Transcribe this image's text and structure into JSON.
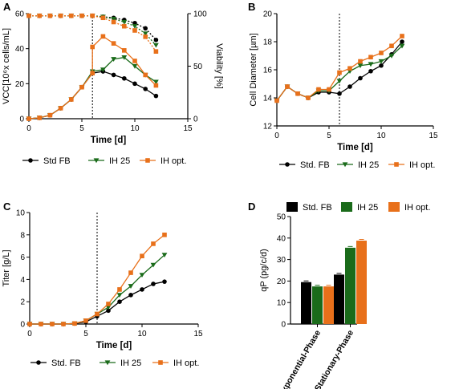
{
  "colors": {
    "std": "#000000",
    "ih25": "#1a6b1a",
    "ihopt": "#e8701a",
    "axis": "#000000"
  },
  "chart_data": [
    {
      "panel_label": "A",
      "type": "line",
      "xlabel": "Time [d]",
      "ylabel": "VCC[10⁶x cells/mL]",
      "y2label": "Viability [%]",
      "xlim": [
        0,
        15
      ],
      "ylim": [
        0,
        60
      ],
      "y2lim": [
        0,
        100
      ],
      "xticks": [
        "0",
        "5",
        "10",
        "15"
      ],
      "yticks": [
        "0",
        "20",
        "40",
        "60"
      ],
      "y2ticks": [
        "0",
        "50",
        "100"
      ],
      "vline_x": 6,
      "legend": [
        "Std FB",
        "IH 25",
        "IH opt."
      ],
      "series": [
        {
          "name": "Std FB",
          "axis": "left",
          "style": "solid",
          "x": [
            0,
            1,
            2,
            3,
            4,
            5,
            6,
            7,
            8,
            9,
            10,
            11,
            12
          ],
          "y": [
            0,
            0.5,
            2,
            6,
            11,
            18,
            26,
            27,
            25,
            23,
            20,
            17,
            13
          ]
        },
        {
          "name": "IH 25",
          "axis": "left",
          "style": "solid",
          "x": [
            0,
            1,
            2,
            3,
            4,
            5,
            6,
            7,
            8,
            9,
            10,
            11,
            12
          ],
          "y": [
            0,
            0.5,
            2,
            6,
            11,
            18,
            27,
            28,
            34,
            35,
            30,
            25,
            21
          ]
        },
        {
          "name": "IH opt.",
          "axis": "left",
          "style": "solid",
          "x": [
            0,
            1,
            2,
            3,
            4,
            5,
            6,
            6,
            7,
            8,
            9,
            10,
            11,
            12
          ],
          "y": [
            0,
            0.5,
            2,
            6,
            11,
            18,
            26,
            41,
            47,
            43,
            39,
            33,
            25,
            19
          ]
        },
        {
          "name": "Std FB",
          "axis": "right",
          "style": "dotted",
          "x": [
            0,
            1,
            2,
            3,
            4,
            5,
            6,
            7,
            8,
            9,
            10,
            11,
            12
          ],
          "y": [
            98,
            98,
            98,
            98,
            98,
            98,
            98,
            97,
            96,
            94,
            91,
            86,
            75
          ]
        },
        {
          "name": "IH 25",
          "axis": "right",
          "style": "dotted",
          "x": [
            0,
            1,
            2,
            3,
            4,
            5,
            6,
            7,
            8,
            9,
            10,
            11,
            12
          ],
          "y": [
            98,
            98,
            98,
            98,
            98,
            98,
            98,
            97,
            95,
            92,
            88,
            81,
            70
          ]
        },
        {
          "name": "IH opt.",
          "axis": "right",
          "style": "dotted",
          "x": [
            0,
            1,
            2,
            3,
            4,
            5,
            6,
            7,
            8,
            9,
            10,
            11,
            12
          ],
          "y": [
            98,
            98,
            98,
            98,
            98,
            98,
            98,
            96,
            92,
            88,
            84,
            78,
            64
          ]
        }
      ]
    },
    {
      "panel_label": "B",
      "type": "line",
      "xlabel": "Time [d]",
      "ylabel": "Cell Diameter [µm]",
      "xlim": [
        0,
        15
      ],
      "ylim": [
        12,
        20
      ],
      "xticks": [
        "0",
        "5",
        "10",
        "15"
      ],
      "yticks": [
        "12",
        "14",
        "16",
        "18",
        "20"
      ],
      "vline_x": 6,
      "legend": [
        "Std. FB",
        "IH 25",
        "IH opt."
      ],
      "series": [
        {
          "name": "Std. FB",
          "x": [
            0,
            1,
            2,
            3,
            4,
            5,
            6,
            7,
            8,
            9,
            10,
            11,
            12
          ],
          "y": [
            13.8,
            14.8,
            14.3,
            14.0,
            14.4,
            14.4,
            14.3,
            14.8,
            15.4,
            15.9,
            16.3,
            17.1,
            18.0
          ]
        },
        {
          "name": "IH 25",
          "x": [
            0,
            1,
            2,
            3,
            4,
            5,
            6,
            7,
            8,
            9,
            10,
            11,
            12
          ],
          "y": [
            13.8,
            14.8,
            14.3,
            14.0,
            14.5,
            14.5,
            15.2,
            15.9,
            16.3,
            16.4,
            16.6,
            17.0,
            17.7
          ]
        },
        {
          "name": "IH opt.",
          "x": [
            0,
            1,
            2,
            3,
            4,
            5,
            6,
            7,
            8,
            9,
            10,
            11,
            12
          ],
          "y": [
            13.8,
            14.8,
            14.3,
            14.0,
            14.6,
            14.6,
            15.8,
            16.1,
            16.6,
            16.9,
            17.2,
            17.7,
            18.4
          ]
        }
      ]
    },
    {
      "panel_label": "C",
      "type": "line",
      "xlabel": "Time [d]",
      "ylabel": "Titer [g/L]",
      "xlim": [
        0,
        15
      ],
      "ylim": [
        0,
        10
      ],
      "xticks": [
        "0",
        "5",
        "10",
        "15"
      ],
      "yticks": [
        "0",
        "2",
        "4",
        "6",
        "8",
        "10"
      ],
      "vline_x": 6,
      "legend": [
        "Std. FB",
        "IH 25",
        "IH opt."
      ],
      "series": [
        {
          "name": "Std. FB",
          "x": [
            0,
            1,
            2,
            3,
            4,
            5,
            6,
            7,
            8,
            9,
            10,
            11,
            12
          ],
          "y": [
            0,
            0,
            0,
            0,
            0.05,
            0.2,
            0.7,
            1.2,
            2.0,
            2.6,
            3.1,
            3.6,
            3.8
          ]
        },
        {
          "name": "IH 25",
          "x": [
            0,
            1,
            2,
            3,
            4,
            5,
            6,
            7,
            8,
            9,
            10,
            11,
            12
          ],
          "y": [
            0,
            0,
            0,
            0,
            0.05,
            0.3,
            0.9,
            1.5,
            2.6,
            3.4,
            4.4,
            5.3,
            6.2
          ]
        },
        {
          "name": "IH opt.",
          "x": [
            0,
            1,
            2,
            3,
            4,
            5,
            6,
            7,
            8,
            9,
            10,
            11,
            12
          ],
          "y": [
            0,
            0,
            0,
            0,
            0.05,
            0.3,
            0.9,
            1.8,
            3.1,
            4.6,
            6.1,
            7.2,
            8.0
          ]
        }
      ]
    },
    {
      "panel_label": "D",
      "type": "bar",
      "ylabel": "qP (pg/c/d)",
      "ylim": [
        0,
        50
      ],
      "yticks": [
        "0",
        "10",
        "20",
        "30",
        "40",
        "50"
      ],
      "categories": [
        "Exponential-Phase",
        "Stationary-Phase"
      ],
      "legend": [
        "Std. FB",
        "IH 25",
        "IH opt."
      ],
      "series": [
        {
          "name": "Std. FB",
          "values": [
            19.5,
            23.0
          ]
        },
        {
          "name": "IH 25",
          "values": [
            17.5,
            35.5
          ]
        },
        {
          "name": "IH opt.",
          "values": [
            17.5,
            38.8
          ]
        }
      ]
    }
  ]
}
